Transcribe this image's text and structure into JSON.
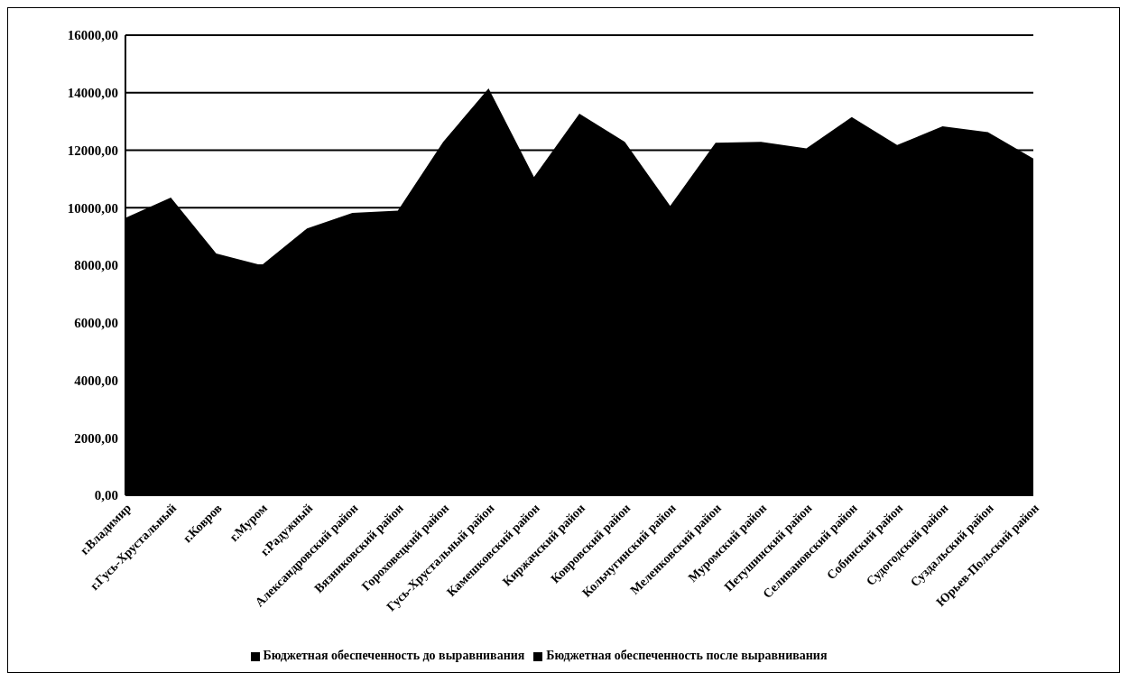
{
  "chart_data": {
    "type": "area",
    "categories": [
      "г.Владимир",
      "г.Гусь-Хрустальный",
      "г.Ковров",
      "г.Муром",
      "г.Радужный",
      "Александровский район",
      "Вязниковский район",
      "Гороховецкий район",
      "Гусь-Хрустальный район",
      "Камешковский район",
      "Киржачский  район",
      "Ковровский район",
      "Кольчугинский район",
      "Меленковский район",
      "Муромский район",
      "Петушинский  район",
      "Селивановский район",
      "Собинский район",
      "Судогодский район",
      "Суздальский район",
      "Юрьев-Польский район"
    ],
    "series": [
      {
        "name": "Бюджетная обеспеченность до выравнивания",
        "color": "#000000",
        "values": [
          null,
          null,
          null,
          null,
          null,
          null,
          null,
          null,
          null,
          null,
          null,
          null,
          null,
          null,
          null,
          null,
          null,
          null,
          null,
          null,
          null
        ]
      },
      {
        "name": "Бюджетная обеспеченность после  выравнивания",
        "color": "#000000",
        "values": [
          9650,
          10350,
          8410,
          8000,
          9280,
          9820,
          9900,
          12290,
          14150,
          11070,
          13270,
          12290,
          10060,
          12260,
          12290,
          12060,
          13150,
          12180,
          12830,
          12630,
          11710
        ]
      }
    ],
    "ylim": [
      0,
      16000
    ],
    "yticks": [
      {
        "value": 0,
        "label": "0,00"
      },
      {
        "value": 2000,
        "label": "2000,00"
      },
      {
        "value": 4000,
        "label": "4000,00"
      },
      {
        "value": 6000,
        "label": "6000,00"
      },
      {
        "value": 8000,
        "label": "8000,00"
      },
      {
        "value": 10000,
        "label": "10000,00"
      },
      {
        "value": 12000,
        "label": "12000,00"
      },
      {
        "value": 14000,
        "label": "14000,00"
      },
      {
        "value": 16000,
        "label": "16000,00"
      }
    ],
    "grid": "y",
    "legend": "bottom"
  }
}
